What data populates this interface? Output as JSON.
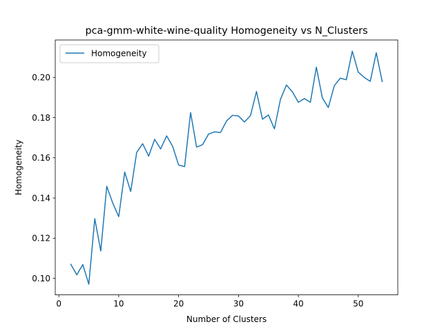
{
  "chart_data": {
    "type": "line",
    "title": "pca-gmm-white-wine-quality Homogeneity vs N_Clusters",
    "xlabel": "Number of Clusters",
    "ylabel": "Homogeneity",
    "xlim": [
      -0.6,
      56.6
    ],
    "ylim": [
      0.0918,
      0.2186
    ],
    "xticks": [
      0,
      10,
      20,
      30,
      40,
      50
    ],
    "xtick_labels": [
      "0",
      "10",
      "20",
      "30",
      "40",
      "50"
    ],
    "yticks": [
      0.1,
      0.12,
      0.14,
      0.16,
      0.18,
      0.2
    ],
    "ytick_labels": [
      "0.10",
      "0.12",
      "0.14",
      "0.16",
      "0.18",
      "0.20"
    ],
    "grid": false,
    "legend_position": "upper left",
    "series": [
      {
        "name": "Homogeneity",
        "color": "#1f77b4",
        "x": [
          2,
          3,
          4,
          5,
          6,
          7,
          8,
          9,
          10,
          11,
          12,
          13,
          14,
          15,
          16,
          17,
          18,
          19,
          20,
          21,
          22,
          23,
          24,
          25,
          26,
          27,
          28,
          29,
          30,
          31,
          32,
          33,
          34,
          35,
          36,
          37,
          38,
          39,
          40,
          41,
          42,
          43,
          44,
          45,
          46,
          47,
          48,
          49,
          50,
          51,
          52,
          53,
          54
        ],
        "y": [
          0.107,
          0.1018,
          0.1069,
          0.0971,
          0.1297,
          0.1136,
          0.1458,
          0.1375,
          0.1307,
          0.1529,
          0.1432,
          0.1627,
          0.167,
          0.1608,
          0.1692,
          0.1644,
          0.1709,
          0.1657,
          0.1564,
          0.1556,
          0.1825,
          0.1653,
          0.1665,
          0.1718,
          0.1729,
          0.1726,
          0.1783,
          0.1811,
          0.1808,
          0.1778,
          0.181,
          0.193,
          0.1792,
          0.1813,
          0.1744,
          0.189,
          0.1962,
          0.1928,
          0.1876,
          0.1895,
          0.1876,
          0.2051,
          0.1898,
          0.185,
          0.1959,
          0.1996,
          0.1988,
          0.213,
          0.2026,
          0.2,
          0.198,
          0.2123,
          0.1979
        ]
      }
    ]
  }
}
